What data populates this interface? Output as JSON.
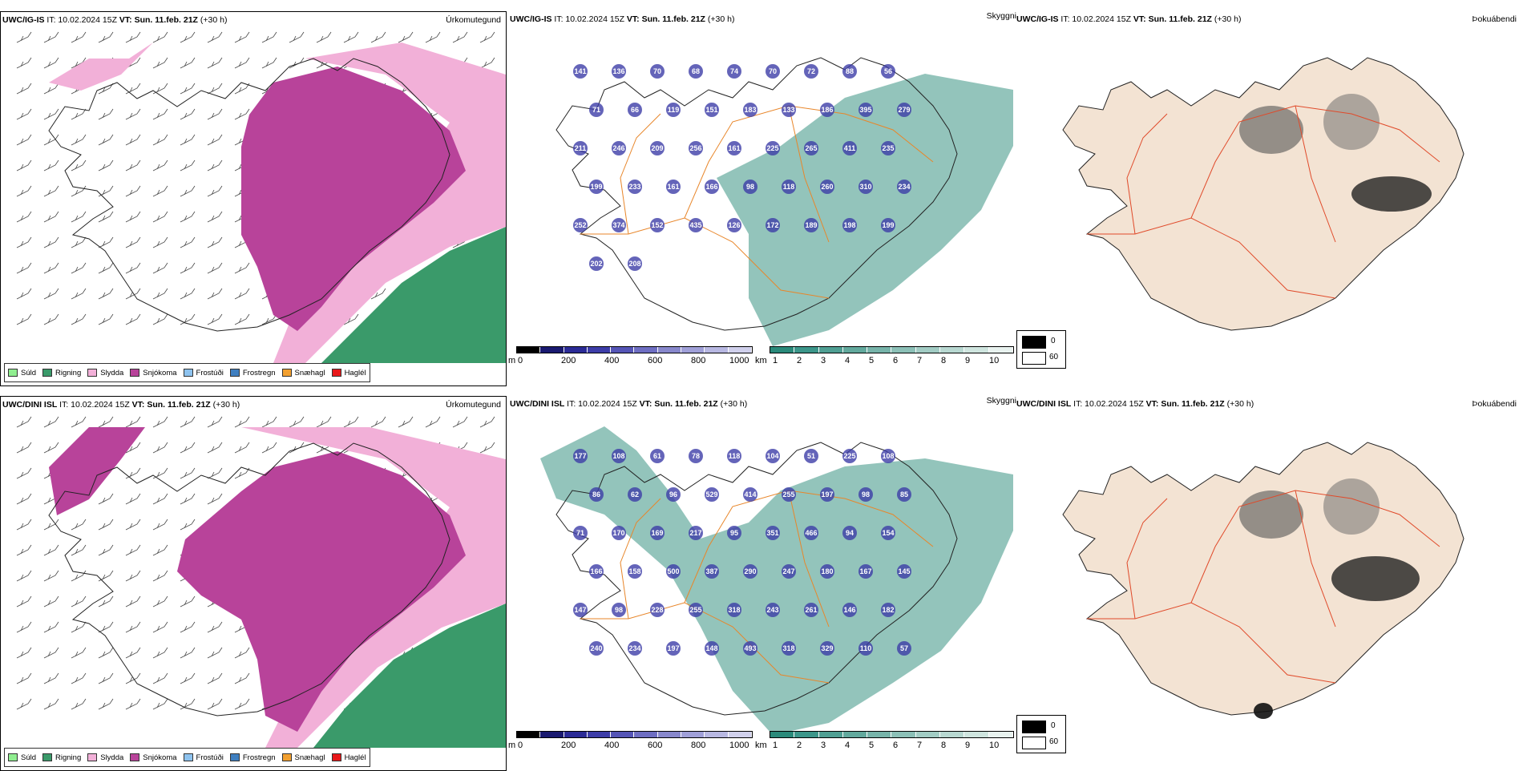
{
  "rows": [
    {
      "precip": {
        "model": "UWC/IG-IS",
        "init": "IT: 10.02.2024 15Z",
        "vt_label": "VT:",
        "vt": "Sun. 11.feb. 21Z",
        "lead": "(+30 h)",
        "product": "Úrkomutegund"
      },
      "visibility": {
        "model": "UWC/IG-IS",
        "init": "IT: 10.02.2024 15Z",
        "vt_label": "VT:",
        "vt": "Sun. 11.feb. 21Z",
        "lead": "(+30 h)",
        "product": "Skyggni"
      },
      "cloud": {
        "model": "UWC/IG-IS",
        "init": "IT: 10.02.2024 15Z",
        "vt_label": "VT:",
        "vt": "Sun. 11.feb. 21Z",
        "lead": "(+30 h)",
        "product": "Þokuábendi"
      },
      "vis_labels": [
        "141",
        "136",
        "70",
        "68",
        "74",
        "70",
        "72",
        "88",
        "56",
        "71",
        "66",
        "119",
        "151",
        "183",
        "133",
        "186",
        "395",
        "279",
        "211",
        "246",
        "209",
        "256",
        "161",
        "225",
        "265",
        "411",
        "235",
        "199",
        "233",
        "161",
        "166",
        "98",
        "118",
        "260",
        "310",
        "234",
        "252",
        "374",
        "152",
        "435",
        "126",
        "172",
        "189",
        "198",
        "199",
        "202",
        "208"
      ]
    },
    {
      "precip": {
        "model": "UWC/DINI ISL",
        "init": "IT: 10.02.2024 15Z",
        "vt_label": "VT:",
        "vt": "Sun. 11.feb. 21Z",
        "lead": "(+30 h)",
        "product": "Úrkomutegund"
      },
      "visibility": {
        "model": "UWC/DINI ISL",
        "init": "IT: 10.02.2024 15Z",
        "vt_label": "VT:",
        "vt": "Sun. 11.feb. 21Z",
        "lead": "(+30 h)",
        "product": "Skyggni"
      },
      "cloud": {
        "model": "UWC/DINI ISL",
        "init": "IT: 10.02.2024 15Z",
        "vt_label": "VT:",
        "vt": "Sun. 11.feb. 21Z",
        "lead": "(+30 h)",
        "product": "Þokuábendi"
      },
      "vis_labels": [
        "177",
        "108",
        "61",
        "78",
        "118",
        "104",
        "51",
        "225",
        "108",
        "86",
        "62",
        "96",
        "529",
        "414",
        "255",
        "197",
        "98",
        "85",
        "71",
        "170",
        "169",
        "217",
        "95",
        "351",
        "466",
        "94",
        "154",
        "166",
        "158",
        "500",
        "387",
        "290",
        "247",
        "180",
        "167",
        "145",
        "147",
        "98",
        "228",
        "255",
        "318",
        "243",
        "261",
        "146",
        "182",
        "240",
        "234",
        "197",
        "148",
        "493",
        "318",
        "329",
        "110",
        "57"
      ]
    }
  ],
  "precip_legend": [
    {
      "label": "Súld",
      "color": "#90ee90"
    },
    {
      "label": "Rigning",
      "color": "#3a9a6a"
    },
    {
      "label": "Slydda",
      "color": "#f2b0d8"
    },
    {
      "label": "Snjókoma",
      "color": "#b8439a"
    },
    {
      "label": "Frostúði",
      "color": "#8ec3ef"
    },
    {
      "label": "Frostregn",
      "color": "#3f7fc0"
    },
    {
      "label": "Snæhagl",
      "color": "#f2a030"
    },
    {
      "label": "Haglél",
      "color": "#e8181a"
    }
  ],
  "height_bar": {
    "unit": "m",
    "ticks": [
      "0",
      "200",
      "400",
      "600",
      "800",
      "1000"
    ],
    "colors": [
      "#000000",
      "#1a1a70",
      "#2b2b96",
      "#3d3da8",
      "#5555b6",
      "#6e6ec2",
      "#8888cc",
      "#a0a0d8",
      "#b8b8e2",
      "#d0d0ec"
    ]
  },
  "vis_bar": {
    "unit": "km",
    "ticks": [
      "1",
      "2",
      "3",
      "4",
      "5",
      "6",
      "7",
      "8",
      "9",
      "10"
    ],
    "colors": [
      "#2a8a7a",
      "#3c968a",
      "#4f9f93",
      "#62a99d",
      "#77b4aa",
      "#8cc0b7",
      "#a2ccc4",
      "#b8d8d1",
      "#cfe5df",
      "#e8f2ef"
    ]
  },
  "cloud_legend": {
    "low": "0",
    "high": "60"
  }
}
